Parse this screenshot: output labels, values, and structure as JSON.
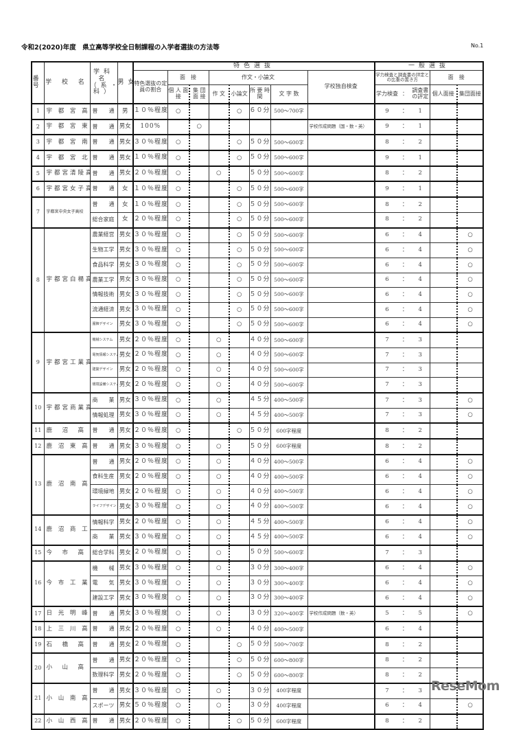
{
  "document": {
    "title": "令和2(2020)年度　県立高等学校全日制課程の入学者選抜の方法等",
    "page_number": "No.1",
    "watermark": "ReseMom",
    "watermark_sub": "リセマム"
  },
  "header": {
    "no": "番号",
    "school": "学 校 名",
    "dept": "学科名（系・科）",
    "sex": "男女",
    "tokushoku": "特色選抜",
    "quota": "特色選抜の定員の割合",
    "interview": "面　接",
    "individual": "個 人 面 接",
    "group": "集 団 面 接",
    "essay_group": "作文・小論文",
    "essay": "作 文",
    "short_essay": "小論文",
    "time": "所 要 時 間",
    "chars": "文 字 数",
    "dokuji": "学校独自検査",
    "ippan": "一般選抜",
    "weight": "学力検査と調査書の評定との比重の置き方",
    "gakuryoku": "学力検査",
    "colon": "：",
    "chosasho": "調査書の評定",
    "g_interview": "面　接",
    "g_individual": "個人面接",
    "g_group": "集団面接"
  },
  "schools": [
    {
      "no": "1",
      "name": "宇 都 宮 高 校",
      "depts": [
        [
          "普　　通",
          "男",
          "１０％程度",
          "○",
          "",
          "",
          "○",
          "６０分",
          "500～700字",
          "",
          "9",
          "1",
          "",
          ""
        ]
      ]
    },
    {
      "no": "2",
      "name": "宇 都 宮 東 高 校",
      "depts": [
        [
          "普　　通",
          "男女",
          "100%",
          "",
          "○",
          "",
          "",
          "",
          "",
          "学校作成問題（国・数・英）",
          "9",
          "1",
          "",
          ""
        ]
      ]
    },
    {
      "no": "3",
      "name": "宇 都 宮 南 高 校",
      "depts": [
        [
          "普　　通",
          "男女",
          "３０％程度",
          "○",
          "",
          "",
          "○",
          "５０分",
          "500～600字",
          "",
          "8",
          "2",
          "",
          ""
        ]
      ]
    },
    {
      "no": "4",
      "name": "宇 都 宮 北 高 校",
      "depts": [
        [
          "普　　通",
          "男女",
          "１０％程度",
          "○",
          "",
          "",
          "○",
          "５０分",
          "500～600字",
          "",
          "9",
          "1",
          "",
          ""
        ]
      ]
    },
    {
      "no": "5",
      "name": "宇都宮清陵高校",
      "depts": [
        [
          "普　　通",
          "男女",
          "２０％程度",
          "○",
          "",
          "○",
          "",
          "５０分",
          "500～600字",
          "",
          "8",
          "2",
          "",
          ""
        ]
      ]
    },
    {
      "no": "6",
      "name": "宇都宮女子高校",
      "depts": [
        [
          "普　　通",
          "女",
          "１０％程度",
          "○",
          "",
          "",
          "○",
          "５０分",
          "500～600字",
          "",
          "9",
          "1",
          "",
          ""
        ]
      ]
    },
    {
      "no": "7",
      "name": "宇都宮中央女子高校",
      "small": true,
      "depts": [
        [
          "普　　通",
          "女",
          "１０％程度",
          "○",
          "",
          "",
          "○",
          "５０分",
          "500～600字",
          "",
          "8",
          "2",
          "",
          ""
        ],
        [
          "総合家庭",
          "女",
          "２０％程度",
          "○",
          "",
          "",
          "○",
          "５０分",
          "500～600字",
          "",
          "8",
          "2",
          "",
          ""
        ]
      ]
    },
    {
      "no": "8",
      "name": "宇都宮白楊高校",
      "depts": [
        [
          "農業経営",
          "男女",
          "３０％程度",
          "○",
          "",
          "",
          "○",
          "５０分",
          "500～600字",
          "",
          "6",
          "4",
          "",
          "○"
        ],
        [
          "生物工学",
          "男女",
          "３０％程度",
          "○",
          "",
          "",
          "○",
          "５０分",
          "500～600字",
          "",
          "6",
          "4",
          "",
          "○"
        ],
        [
          "食品科学",
          "男女",
          "３０％程度",
          "○",
          "",
          "",
          "○",
          "５０分",
          "500～600字",
          "",
          "6",
          "4",
          "",
          "○"
        ],
        [
          "農業工学",
          "男女",
          "３０％程度",
          "○",
          "",
          "",
          "○",
          "５０分",
          "500～600字",
          "",
          "6",
          "4",
          "",
          "○"
        ],
        [
          "情報技術",
          "男女",
          "３０％程度",
          "○",
          "",
          "",
          "○",
          "５０分",
          "500～600字",
          "",
          "6",
          "4",
          "",
          "○"
        ],
        [
          "流通経済",
          "男女",
          "３０％程度",
          "○",
          "",
          "",
          "○",
          "５０分",
          "500～600字",
          "",
          "6",
          "4",
          "",
          "○"
        ],
        [
          "服飾デザイン",
          "男女",
          "３０％程度",
          "○",
          "",
          "",
          "○",
          "５０分",
          "500～600字",
          "",
          "6",
          "4",
          "",
          "○"
        ]
      ]
    },
    {
      "no": "9",
      "name": "宇都宮工業高校",
      "depts": [
        [
          "機械システム",
          "男女",
          "２０％程度",
          "○",
          "",
          "○",
          "",
          "４０分",
          "500～600字",
          "",
          "7",
          "3",
          "",
          ""
        ],
        [
          "電気情報システム",
          "男女",
          "２０％程度",
          "○",
          "",
          "○",
          "",
          "４０分",
          "500～600字",
          "",
          "7",
          "3",
          "",
          ""
        ],
        [
          "建築デザイン",
          "男女",
          "２０％程度",
          "○",
          "",
          "○",
          "",
          "４０分",
          "500～600字",
          "",
          "7",
          "3",
          "",
          ""
        ],
        [
          "環境設備システム",
          "男女",
          "２０％程度",
          "○",
          "",
          "○",
          "",
          "４０分",
          "500～600字",
          "",
          "7",
          "3",
          "",
          ""
        ]
      ]
    },
    {
      "no": "10",
      "name": "宇都宮商業高校",
      "depts": [
        [
          "商　　業",
          "男女",
          "３０％程度",
          "○",
          "",
          "○",
          "",
          "４５分",
          "400～500字",
          "",
          "7",
          "3",
          "",
          "○"
        ],
        [
          "情報処理",
          "男女",
          "３０％程度",
          "○",
          "",
          "○",
          "",
          "４５分",
          "400～500字",
          "",
          "7",
          "3",
          "",
          "○"
        ]
      ]
    },
    {
      "no": "11",
      "name": "鹿　沼　高　校",
      "depts": [
        [
          "普　　通",
          "男女",
          "２０％程度",
          "○",
          "",
          "",
          "○",
          "５０分",
          "600字程度",
          "",
          "8",
          "2",
          "",
          ""
        ]
      ]
    },
    {
      "no": "12",
      "name": "鹿 沼 東 高 校",
      "depts": [
        [
          "普　　通",
          "男女",
          "３０％程度",
          "○",
          "",
          "○",
          "",
          "５０分",
          "600字程度",
          "",
          "8",
          "2",
          "",
          ""
        ]
      ]
    },
    {
      "no": "13",
      "name": "鹿 沼 南 高 校",
      "depts": [
        [
          "普　　通",
          "男女",
          "２０％程度",
          "○",
          "",
          "○",
          "",
          "４０分",
          "400～500字",
          "",
          "6",
          "4",
          "",
          "○"
        ],
        [
          "食料生産",
          "男女",
          "２０％程度",
          "○",
          "",
          "○",
          "",
          "４０分",
          "400～500字",
          "",
          "6",
          "4",
          "",
          "○"
        ],
        [
          "環境緑地",
          "男女",
          "２０％程度",
          "○",
          "",
          "○",
          "",
          "４０分",
          "400～500字",
          "",
          "6",
          "4",
          "",
          "○"
        ],
        [
          "ライフデザイン",
          "男女",
          "３０％程度",
          "○",
          "",
          "○",
          "",
          "４０分",
          "400～500字",
          "",
          "6",
          "4",
          "",
          "○"
        ]
      ]
    },
    {
      "no": "14",
      "name": "鹿 沼 商 工 高 校",
      "depts": [
        [
          "情報科学",
          "男女",
          "２０％程度",
          "○",
          "",
          "○",
          "",
          "４５分",
          "400～500字",
          "",
          "6",
          "4",
          "",
          "○"
        ],
        [
          "商　　業",
          "男女",
          "３０％程度",
          "○",
          "",
          "○",
          "",
          "４５分",
          "400～500字",
          "",
          "6",
          "4",
          "",
          "○"
        ]
      ]
    },
    {
      "no": "15",
      "name": "今　市　高　校",
      "depts": [
        [
          "総合学科",
          "男女",
          "２０％程度",
          "○",
          "",
          "○",
          "",
          "５０分",
          "500～600字",
          "",
          "7",
          "3",
          "",
          ""
        ]
      ]
    },
    {
      "no": "16",
      "name": "今 市 工 業 高 校",
      "depts": [
        [
          "機　　械",
          "男女",
          "３０％程度",
          "○",
          "",
          "○",
          "",
          "３０分",
          "300～400字",
          "",
          "6",
          "4",
          "",
          "○"
        ],
        [
          "電　　気",
          "男女",
          "３０％程度",
          "○",
          "",
          "○",
          "",
          "３０分",
          "300～400字",
          "",
          "6",
          "4",
          "",
          "○"
        ],
        [
          "建設工学",
          "男女",
          "３０％程度",
          "○",
          "",
          "○",
          "",
          "３０分",
          "300～400字",
          "",
          "6",
          "4",
          "",
          "○"
        ]
      ]
    },
    {
      "no": "17",
      "name": "日 光 明 峰 高 校",
      "depts": [
        [
          "普　　通",
          "男女",
          "３０％程度",
          "○",
          "",
          "○",
          "",
          "３０分",
          "320～400字",
          "学校作成問題（数・英）",
          "5",
          "5",
          "",
          "○"
        ]
      ]
    },
    {
      "no": "18",
      "name": "上 三 川 高 校",
      "depts": [
        [
          "普　　通",
          "男女",
          "２０％程度",
          "○",
          "",
          "○",
          "",
          "４０分",
          "400～500字",
          "",
          "6",
          "4",
          "",
          ""
        ]
      ]
    },
    {
      "no": "19",
      "name": "石　橋　高　校",
      "depts": [
        [
          "普　　通",
          "男女",
          "２０％程度",
          "○",
          "",
          "",
          "○",
          "５０分",
          "500～700字",
          "",
          "8",
          "2",
          "",
          ""
        ]
      ]
    },
    {
      "no": "20",
      "name": "小　山　高　校",
      "depts": [
        [
          "普　　通",
          "男女",
          "２０％程度",
          "○",
          "",
          "",
          "○",
          "５０分",
          "600～800字",
          "",
          "8",
          "2",
          "",
          ""
        ],
        [
          "数理科学",
          "男女",
          "２０％程度",
          "○",
          "",
          "",
          "○",
          "５０分",
          "600～800字",
          "",
          "8",
          "2",
          "",
          ""
        ]
      ]
    },
    {
      "no": "21",
      "name": "小 山 南 高 校",
      "depts": [
        [
          "普　　通",
          "男女",
          "３０％程度",
          "○",
          "",
          "○",
          "",
          "３０分",
          "400字程度",
          "",
          "7",
          "3",
          "",
          ""
        ],
        [
          "スポーツ",
          "男女",
          "５０％程度",
          "○",
          "",
          "○",
          "",
          "３０分",
          "400字程度",
          "",
          "6",
          "4",
          "",
          "○"
        ]
      ]
    },
    {
      "no": "22",
      "name": "小 山 西 高 校",
      "depts": [
        [
          "普　　通",
          "男女",
          "２０％程度",
          "○",
          "",
          "",
          "○",
          "５０分",
          "600字程度",
          "",
          "8",
          "2",
          "",
          ""
        ]
      ]
    }
  ]
}
